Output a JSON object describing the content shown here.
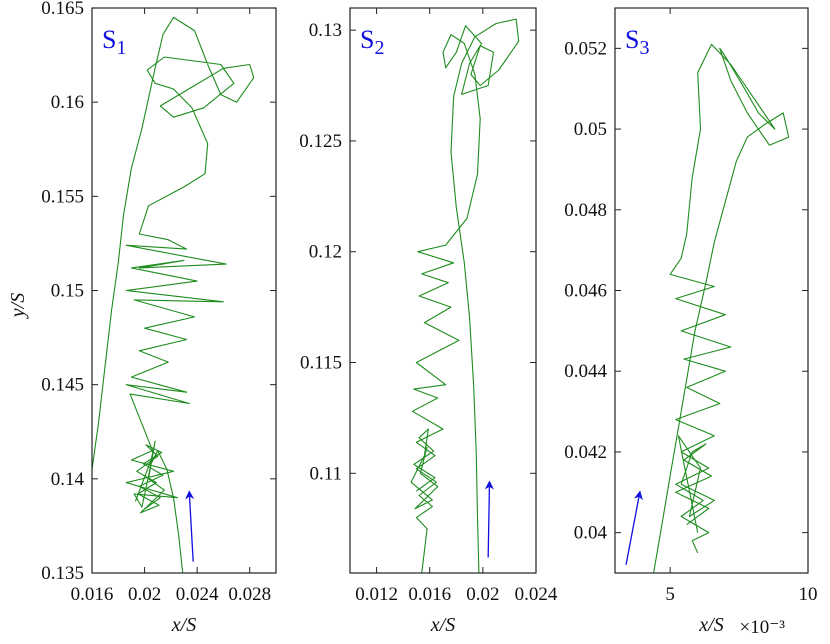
{
  "colors": {
    "trajectory": "#1e8c1e",
    "arrow": "#1010e0",
    "panel_label": "#1010e0",
    "axes": "#222222"
  },
  "chart_data": [
    {
      "type": "line",
      "panel_label": {
        "main": "S",
        "sub": "1"
      },
      "xlabel": "x/S",
      "ylabel": "y/S",
      "xlim": [
        0.016,
        0.03
      ],
      "ylim": [
        0.135,
        0.165
      ],
      "xticks": [
        0.016,
        0.02,
        0.024,
        0.028
      ],
      "xtick_labels": [
        "0.016",
        "0.02",
        "0.024",
        "0.028"
      ],
      "yticks": [
        0.135,
        0.14,
        0.145,
        0.15,
        0.155,
        0.16,
        0.165
      ],
      "ytick_labels": [
        "0.135",
        "0.14",
        "0.145",
        "0.15",
        "0.155",
        "0.16",
        "0.165"
      ],
      "x_multiplier": "",
      "arrow": {
        "from": [
          0.0237,
          0.1356
        ],
        "to": [
          0.0234,
          0.1393
        ]
      },
      "series": [
        {
          "values": [
            [
              0.0229,
              0.135
            ],
            [
              0.0226,
              0.137
            ],
            [
              0.0222,
              0.139
            ],
            [
              0.0217,
              0.1405
            ],
            [
              0.021,
              0.1415
            ],
            [
              0.0205,
              0.1408
            ],
            [
              0.0198,
              0.1385
            ],
            [
              0.0192,
              0.1392
            ],
            [
              0.0225,
              0.139
            ],
            [
              0.0186,
              0.1398
            ],
            [
              0.0222,
              0.1404
            ],
            [
              0.019,
              0.141
            ],
            [
              0.0206,
              0.1415
            ],
            [
              0.0189,
              0.1445
            ],
            [
              0.0234,
              0.144
            ],
            [
              0.0186,
              0.145
            ],
            [
              0.0232,
              0.1446
            ],
            [
              0.019,
              0.1454
            ],
            [
              0.0218,
              0.1462
            ],
            [
              0.0196,
              0.1468
            ],
            [
              0.0232,
              0.1474
            ],
            [
              0.02,
              0.148
            ],
            [
              0.0238,
              0.1486
            ],
            [
              0.0192,
              0.1495
            ],
            [
              0.026,
              0.1494
            ],
            [
              0.0186,
              0.15
            ],
            [
              0.024,
              0.1505
            ],
            [
              0.019,
              0.1512
            ],
            [
              0.023,
              0.1516
            ],
            [
              0.0196,
              0.1512
            ],
            [
              0.0262,
              0.1514
            ],
            [
              0.0186,
              0.1524
            ],
            [
              0.0232,
              0.1522
            ],
            [
              0.0218,
              0.1527
            ],
            [
              0.0196,
              0.153
            ],
            [
              0.0203,
              0.1545
            ],
            [
              0.023,
              0.1555
            ],
            [
              0.0246,
              0.1562
            ],
            [
              0.0248,
              0.1578
            ],
            [
              0.0236,
              0.1597
            ],
            [
              0.0222,
              0.1607
            ],
            [
              0.0208,
              0.161
            ],
            [
              0.0202,
              0.1617
            ],
            [
              0.0215,
              0.1624
            ],
            [
              0.0258,
              0.162
            ],
            [
              0.0268,
              0.161
            ],
            [
              0.0245,
              0.1597
            ],
            [
              0.0222,
              0.1592
            ],
            [
              0.0212,
              0.1598
            ],
            [
              0.0236,
              0.1608
            ],
            [
              0.026,
              0.1618
            ],
            [
              0.028,
              0.162
            ],
            [
              0.0283,
              0.1613
            ],
            [
              0.027,
              0.16
            ],
            [
              0.0258,
              0.1604
            ],
            [
              0.0248,
              0.162
            ],
            [
              0.0238,
              0.1638
            ],
            [
              0.0222,
              0.1645
            ],
            [
              0.0214,
              0.1636
            ],
            [
              0.0208,
              0.1618
            ],
            [
              0.0198,
              0.1586
            ],
            [
              0.019,
              0.1565
            ],
            [
              0.0184,
              0.154
            ],
            [
              0.018,
              0.1515
            ],
            [
              0.0175,
              0.149
            ],
            [
              0.017,
              0.146
            ],
            [
              0.0165,
              0.143
            ],
            [
              0.016,
              0.1405
            ],
            [
              0.0156,
              0.138
            ],
            [
              0.0152,
              0.136
            ],
            [
              0.015,
              0.135
            ]
          ]
        },
        {
          "values": [
            [
              0.02,
              0.1384
            ],
            [
              0.0212,
              0.139
            ],
            [
              0.0196,
              0.1396
            ],
            [
              0.0214,
              0.1402
            ],
            [
              0.0199,
              0.1408
            ],
            [
              0.0213,
              0.1414
            ],
            [
              0.0201,
              0.1418
            ],
            [
              0.021,
              0.1412
            ],
            [
              0.0194,
              0.1404
            ],
            [
              0.0209,
              0.1398
            ],
            [
              0.0195,
              0.1392
            ],
            [
              0.0211,
              0.1386
            ],
            [
              0.0197,
              0.1382
            ],
            [
              0.0215,
              0.1394
            ],
            [
              0.0203,
              0.14
            ],
            [
              0.0208,
              0.142
            ],
            [
              0.0205,
              0.141
            ],
            [
              0.0193,
              0.1388
            ]
          ]
        }
      ]
    },
    {
      "type": "line",
      "panel_label": {
        "main": "S",
        "sub": "2"
      },
      "xlabel": "x/S",
      "ylabel": "",
      "xlim": [
        0.01,
        0.024
      ],
      "ylim": [
        0.1055,
        0.131
      ],
      "xticks": [
        0.012,
        0.016,
        0.02,
        0.024
      ],
      "xtick_labels": [
        "0.012",
        "0.016",
        "0.02",
        "0.024"
      ],
      "yticks": [
        0.11,
        0.115,
        0.12,
        0.125,
        0.13
      ],
      "ytick_labels": [
        "0.11",
        "0.115",
        "0.12",
        "0.125",
        "0.13"
      ],
      "x_multiplier": "",
      "arrow": {
        "from": [
          0.0204,
          0.1062
        ],
        "to": [
          0.0205,
          0.1096
        ]
      },
      "series": [
        {
          "values": [
            [
              0.0197,
              0.1055
            ],
            [
              0.0196,
              0.108
            ],
            [
              0.0195,
              0.111
            ],
            [
              0.0193,
              0.114
            ],
            [
              0.019,
              0.117
            ],
            [
              0.0186,
              0.1195
            ],
            [
              0.018,
              0.122
            ],
            [
              0.0176,
              0.1245
            ],
            [
              0.0178,
              0.127
            ],
            [
              0.0184,
              0.1285
            ],
            [
              0.0194,
              0.1297
            ],
            [
              0.021,
              0.1303
            ],
            [
              0.0225,
              0.1305
            ],
            [
              0.0227,
              0.1295
            ],
            [
              0.0212,
              0.1282
            ],
            [
              0.0198,
              0.1275
            ],
            [
              0.0191,
              0.128
            ],
            [
              0.0198,
              0.1293
            ],
            [
              0.0208,
              0.129
            ],
            [
              0.0204,
              0.1275
            ],
            [
              0.0184,
              0.1271
            ],
            [
              0.019,
              0.1285
            ],
            [
              0.0199,
              0.1294
            ],
            [
              0.0187,
              0.1302
            ],
            [
              0.018,
              0.129
            ],
            [
              0.0172,
              0.1283
            ],
            [
              0.017,
              0.129
            ],
            [
              0.0176,
              0.1298
            ],
            [
              0.0186,
              0.1294
            ],
            [
              0.0194,
              0.128
            ],
            [
              0.0198,
              0.126
            ],
            [
              0.0196,
              0.1235
            ],
            [
              0.0188,
              0.1215
            ],
            [
              0.0172,
              0.1203
            ],
            [
              0.0151,
              0.12
            ],
            [
              0.0178,
              0.1195
            ],
            [
              0.0154,
              0.119
            ],
            [
              0.0174,
              0.1186
            ],
            [
              0.0152,
              0.118
            ],
            [
              0.0176,
              0.1175
            ],
            [
              0.0156,
              0.1168
            ],
            [
              0.0182,
              0.116
            ],
            [
              0.015,
              0.115
            ],
            [
              0.0172,
              0.114
            ],
            [
              0.0148,
              0.1138
            ],
            [
              0.0166,
              0.1134
            ],
            [
              0.0147,
              0.1128
            ],
            [
              0.017,
              0.112
            ],
            [
              0.015,
              0.1114
            ],
            [
              0.0164,
              0.1108
            ],
            [
              0.015,
              0.1102
            ],
            [
              0.0165,
              0.1096
            ],
            [
              0.0152,
              0.109
            ],
            [
              0.0162,
              0.1085
            ],
            [
              0.015,
              0.108
            ],
            [
              0.0158,
              0.1075
            ],
            [
              0.0155,
              0.106
            ],
            [
              0.0154,
              0.1055
            ]
          ]
        },
        {
          "values": [
            [
              0.015,
              0.1092
            ],
            [
              0.0164,
              0.1098
            ],
            [
              0.0148,
              0.1104
            ],
            [
              0.0163,
              0.111
            ],
            [
              0.0152,
              0.1116
            ],
            [
              0.0159,
              0.112
            ],
            [
              0.0156,
              0.1108
            ],
            [
              0.0146,
              0.1096
            ],
            [
              0.0162,
              0.1088
            ],
            [
              0.0149,
              0.1084
            ],
            [
              0.0166,
              0.1094
            ],
            [
              0.0153,
              0.11
            ],
            [
              0.0158,
              0.1112
            ]
          ]
        }
      ]
    },
    {
      "type": "line",
      "panel_label": {
        "main": "S",
        "sub": "3"
      },
      "xlabel": "x/S",
      "ylabel": "",
      "xlim": [
        0.003,
        0.01
      ],
      "ylim": [
        0.039,
        0.053
      ],
      "xticks": [
        0.005,
        0.01
      ],
      "xtick_labels": [
        "5",
        "10"
      ],
      "yticks": [
        0.04,
        0.042,
        0.044,
        0.046,
        0.048,
        0.05,
        0.052
      ],
      "ytick_labels": [
        "0.04",
        "0.042",
        "0.044",
        "0.046",
        "0.048",
        "0.05",
        "0.052"
      ],
      "x_multiplier": "×10⁻³",
      "arrow": {
        "from": [
          0.0034,
          0.0392
        ],
        "to": [
          0.0039,
          0.041
        ]
      },
      "series": [
        {
          "values": [
            [
              0.0044,
              0.039
            ],
            [
              0.0047,
              0.0402
            ],
            [
              0.005,
              0.0414
            ],
            [
              0.0053,
              0.0426
            ],
            [
              0.0056,
              0.0438
            ],
            [
              0.0059,
              0.045
            ],
            [
              0.0063,
              0.0462
            ],
            [
              0.0066,
              0.0472
            ],
            [
              0.007,
              0.0482
            ],
            [
              0.0074,
              0.0492
            ],
            [
              0.0078,
              0.0498
            ],
            [
              0.0084,
              0.0501
            ],
            [
              0.0091,
              0.0504
            ],
            [
              0.0093,
              0.0498
            ],
            [
              0.0086,
              0.0496
            ],
            [
              0.0078,
              0.0504
            ],
            [
              0.0072,
              0.0512
            ],
            [
              0.0068,
              0.052
            ],
            [
              0.007,
              0.0518
            ],
            [
              0.0077,
              0.051
            ],
            [
              0.0082,
              0.0504
            ],
            [
              0.0088,
              0.05
            ],
            [
              0.008,
              0.0508
            ],
            [
              0.0072,
              0.0516
            ],
            [
              0.0065,
              0.0521
            ],
            [
              0.006,
              0.0514
            ],
            [
              0.0061,
              0.05
            ],
            [
              0.0058,
              0.0488
            ],
            [
              0.0056,
              0.0474
            ],
            [
              0.0054,
              0.0468
            ],
            [
              0.005,
              0.0464
            ],
            [
              0.0066,
              0.0461
            ],
            [
              0.0052,
              0.0458
            ],
            [
              0.007,
              0.0454
            ],
            [
              0.0054,
              0.045
            ],
            [
              0.0072,
              0.0446
            ],
            [
              0.0055,
              0.0443
            ],
            [
              0.007,
              0.044
            ],
            [
              0.0056,
              0.0436
            ],
            [
              0.0068,
              0.0432
            ],
            [
              0.0052,
              0.0428
            ],
            [
              0.0066,
              0.0424
            ],
            [
              0.0054,
              0.042
            ],
            [
              0.0064,
              0.0416
            ],
            [
              0.0052,
              0.0412
            ],
            [
              0.0062,
              0.0408
            ],
            [
              0.0054,
              0.0404
            ],
            [
              0.0064,
              0.04
            ],
            [
              0.0058,
              0.0398
            ],
            [
              0.006,
              0.0395
            ]
          ]
        },
        {
          "values": [
            [
              0.0056,
              0.0402
            ],
            [
              0.0064,
              0.0406
            ],
            [
              0.0052,
              0.041
            ],
            [
              0.0065,
              0.0414
            ],
            [
              0.0055,
              0.0418
            ],
            [
              0.0063,
              0.0422
            ],
            [
              0.0058,
              0.042
            ],
            [
              0.0054,
              0.0412
            ],
            [
              0.0066,
              0.0408
            ],
            [
              0.0057,
              0.0404
            ],
            [
              0.0061,
              0.0416
            ],
            [
              0.0053,
              0.0424
            ],
            [
              0.006,
              0.04
            ]
          ]
        }
      ]
    }
  ]
}
